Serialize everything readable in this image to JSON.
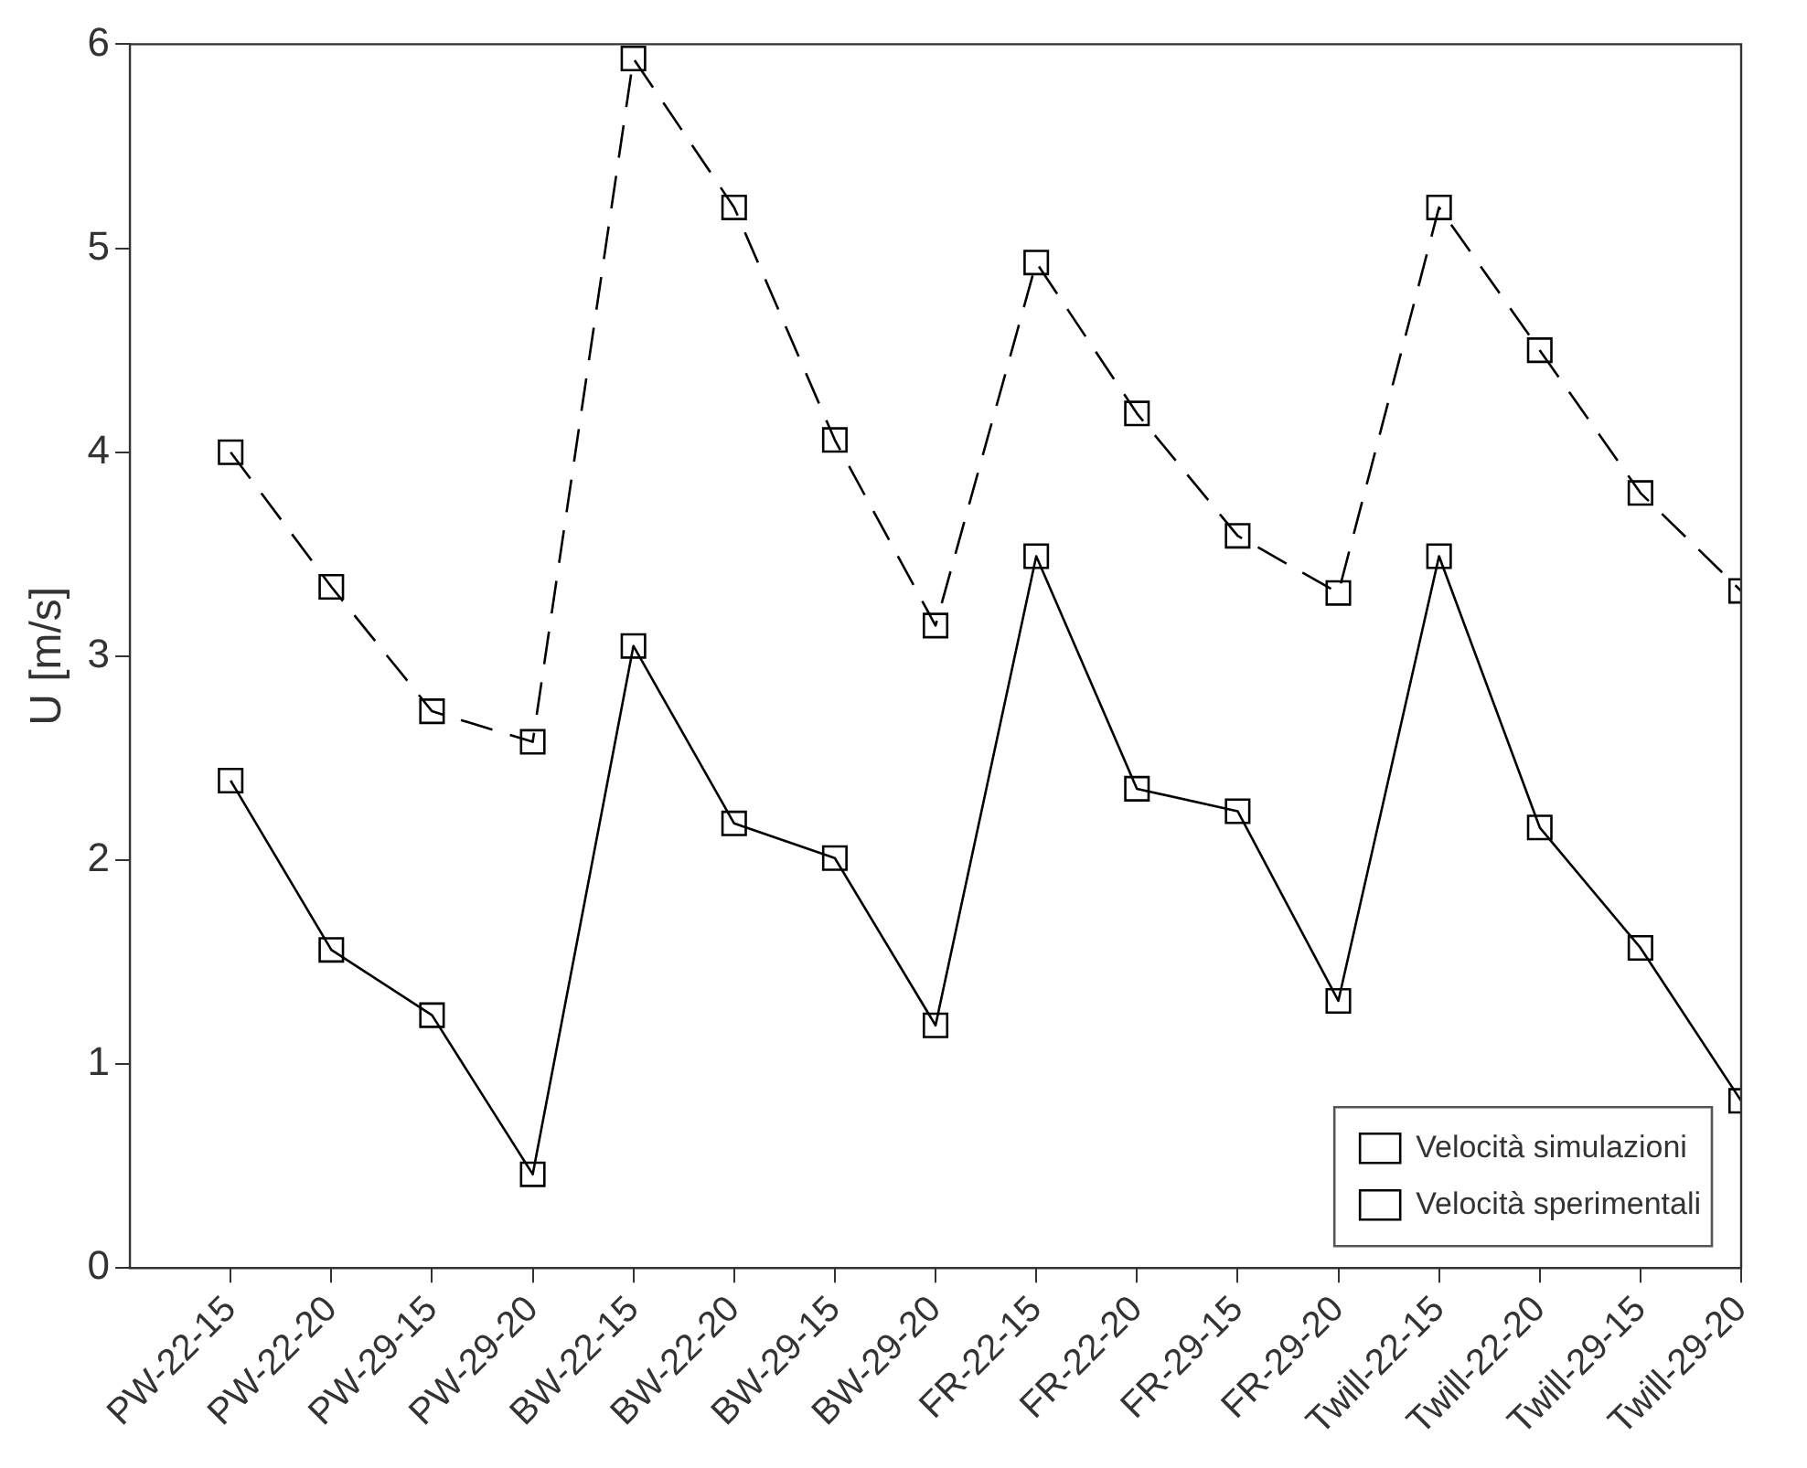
{
  "chart_data": {
    "type": "line",
    "ylabel": "U [m/s]",
    "categories": [
      "PW-22-15",
      "PW-22-20",
      "PW-29-15",
      "PW-29-20",
      "BW-22-15",
      "BW-22-20",
      "BW-29-15",
      "BW-29-20",
      "FR-22-15",
      "FR-22-20",
      "FR-29-15",
      "FR-29-20",
      "Twill-22-15",
      "Twill-22-20",
      "Twill-29-15",
      "Twill-29-20"
    ],
    "series": [
      {
        "name": "Velocità simulazioni",
        "color": "#000000",
        "line_style": "dashed",
        "values": [
          4.0,
          3.34,
          2.73,
          2.58,
          5.93,
          5.2,
          4.06,
          3.15,
          4.93,
          4.19,
          3.59,
          3.31,
          5.2,
          4.5,
          3.8,
          3.32
        ]
      },
      {
        "name": "Velocità sperimentali",
        "color": "#000000",
        "line_style": "solid",
        "values": [
          2.39,
          1.56,
          1.24,
          0.46,
          3.05,
          2.18,
          2.01,
          1.19,
          3.49,
          2.35,
          2.24,
          1.31,
          3.49,
          2.16,
          1.57,
          0.82
        ]
      }
    ],
    "ylim": [
      0,
      6
    ],
    "yticks": [
      0,
      1,
      2,
      3,
      4,
      5,
      6
    ],
    "marker": "square",
    "grid": false,
    "legend": "bottom right"
  }
}
